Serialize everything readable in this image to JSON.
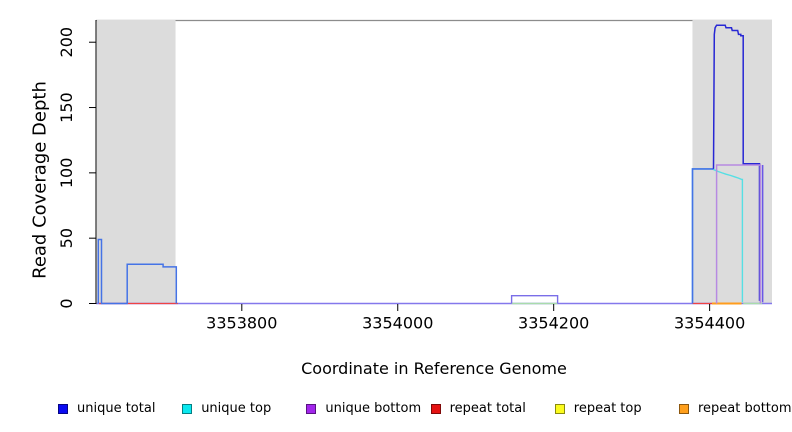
{
  "chart_data": {
    "type": "line",
    "title": "",
    "xlabel": "Coordinate in Reference Genome",
    "ylabel": "Read Coverage Depth",
    "xlim": [
      3353613,
      3354480
    ],
    "ylim": [
      0,
      217
    ],
    "x_ticks": [
      3353800,
      3354000,
      3354200,
      3354400
    ],
    "y_ticks": [
      0,
      50,
      100,
      150,
      200
    ],
    "grid": false,
    "legend_position": "bottom",
    "background": "#ffffff",
    "axis_color": "#000000",
    "box_color": "#8c8c8c",
    "highlight_regions": [
      {
        "name": "repeat-region-left",
        "x0": 3353614,
        "x1": 3353715,
        "color": "#dcdcdc"
      },
      {
        "name": "repeat-region-right",
        "x0": 3354378,
        "x1": 3354480,
        "color": "#dcdcdc"
      }
    ],
    "series": [
      {
        "name": "baseline-all-series-zero",
        "legend": "unique total / unique bottom at 0",
        "color": "#8478ec",
        "width": 1.4,
        "points": [
          [
            3353613,
            0
          ],
          [
            3354480,
            0
          ]
        ]
      },
      {
        "name": "repeat-total-left",
        "legend": "repeat total",
        "color": "#f04343",
        "width": 1.3,
        "points": [
          [
            3353617,
            0
          ],
          [
            3353718,
            0
          ]
        ]
      },
      {
        "name": "repeat-total-right",
        "legend": "repeat total",
        "color": "#f04343",
        "width": 1.3,
        "points": [
          [
            3354378,
            0
          ],
          [
            3354403,
            0
          ]
        ]
      },
      {
        "name": "repeat-bottom-right",
        "legend": "repeat bottom",
        "color": "#ff9d1e",
        "width": 2,
        "points": [
          [
            3354403,
            0
          ],
          [
            3354441,
            0
          ]
        ]
      },
      {
        "name": "top-overlap-mid",
        "legend": "unique top + repeat top",
        "color": "#a9dcab",
        "width": 1.4,
        "points": [
          [
            3354146,
            0
          ],
          [
            3354205,
            0
          ]
        ]
      },
      {
        "name": "top-overlap-right",
        "legend": "unique top + repeat top",
        "color": "#a9dcab",
        "width": 1.4,
        "points": [
          [
            3354443,
            0
          ],
          [
            3354467,
            0
          ]
        ]
      },
      {
        "name": "unique-total-mid-bump",
        "legend": "unique total",
        "color": "#7a6ee8",
        "width": 1.4,
        "points": [
          [
            3354146,
            0
          ],
          [
            3354146,
            6
          ],
          [
            3354205,
            6
          ],
          [
            3354205,
            0
          ]
        ]
      },
      {
        "name": "unique-top-right",
        "legend": "unique top",
        "color": "#55dfe4",
        "width": 1.4,
        "points": [
          [
            3354378,
            1
          ],
          [
            3354378,
            103
          ],
          [
            3354403,
            103
          ],
          [
            3354407,
            102
          ],
          [
            3354411,
            101
          ],
          [
            3354416,
            100
          ],
          [
            3354421,
            99
          ],
          [
            3354427,
            98
          ],
          [
            3354432,
            97
          ],
          [
            3354437,
            96
          ],
          [
            3354441,
            95
          ],
          [
            3354442,
            95
          ],
          [
            3354442,
            1
          ]
        ]
      },
      {
        "name": "unique-total-left",
        "legend": "unique total",
        "color": "#4573e6",
        "width": 1.5,
        "points": [
          [
            3353616,
            0
          ],
          [
            3353616,
            49
          ],
          [
            3353620,
            49
          ],
          [
            3353620,
            0
          ],
          [
            3353653,
            0
          ],
          [
            3353653,
            30
          ],
          [
            3353699,
            30
          ],
          [
            3353699,
            28
          ],
          [
            3353716,
            28
          ],
          [
            3353716,
            0
          ]
        ]
      },
      {
        "name": "unique-total-right-base",
        "legend": "unique total",
        "color": "#4573e6",
        "width": 1.6,
        "points": [
          [
            3354378,
            0
          ],
          [
            3354378,
            103
          ],
          [
            3354405,
            103
          ]
        ]
      },
      {
        "name": "unique-total-right-peak",
        "legend": "unique total",
        "color": "#2727d4",
        "width": 1.5,
        "points": [
          [
            3354405,
            103
          ],
          [
            3354406,
            206
          ],
          [
            3354407,
            211
          ],
          [
            3354409,
            213
          ],
          [
            3354420,
            213
          ],
          [
            3354421,
            211
          ],
          [
            3354428,
            211
          ],
          [
            3354429,
            209
          ],
          [
            3354436,
            209
          ],
          [
            3354437,
            206
          ],
          [
            3354440,
            206
          ],
          [
            3354440,
            205
          ],
          [
            3354443,
            205
          ],
          [
            3354443,
            107
          ],
          [
            3354464,
            107
          ],
          [
            3354464,
            2
          ]
        ]
      },
      {
        "name": "unique-bottom-right",
        "legend": "unique bottom",
        "color": "#b78ae2",
        "width": 1.5,
        "points": [
          [
            3354409,
            0
          ],
          [
            3354409,
            106
          ],
          [
            3354465,
            106
          ],
          [
            3354465,
            0
          ]
        ]
      },
      {
        "name": "total-and-bottom-drop-right",
        "legend": "unique total",
        "color": "#6b57e6",
        "width": 1.6,
        "points": [
          [
            3354468,
            106
          ],
          [
            3354468,
            1
          ]
        ]
      }
    ],
    "legend": {
      "items": [
        {
          "label": "unique total",
          "color": "#0b0bf2"
        },
        {
          "label": "unique top",
          "color": "#0ae8ef"
        },
        {
          "label": "unique bottom",
          "color": "#a226ec"
        },
        {
          "label": "repeat total",
          "color": "#e51212"
        },
        {
          "label": "repeat top",
          "color": "#fbfb1d"
        },
        {
          "label": "repeat bottom",
          "color": "#ff9f1c"
        }
      ]
    }
  }
}
